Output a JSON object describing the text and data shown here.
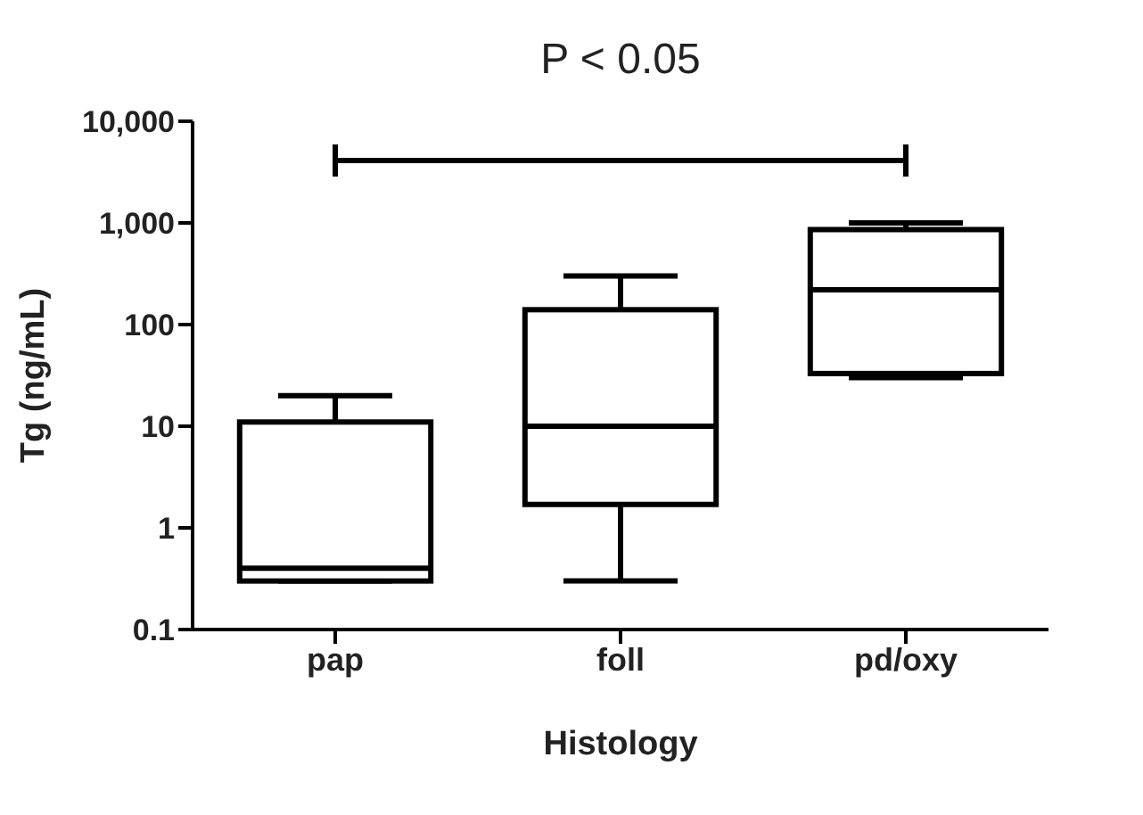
{
  "chart_data": {
    "type": "box",
    "categories": [
      "pap",
      "foll",
      "pd/oxy"
    ],
    "xlabel": "Histology",
    "ylabel": "Tg (ng/mL)",
    "boxes": [
      {
        "low": 0.3,
        "q1": 0.3,
        "median": 0.4,
        "q3": 11,
        "high": 20
      },
      {
        "low": 0.3,
        "q1": 1.7,
        "median": 10,
        "q3": 140,
        "high": 300
      },
      {
        "low": 30,
        "q1": 33,
        "median": 220,
        "q3": 860,
        "high": 1000
      }
    ],
    "color": "#000000",
    "log": "y",
    "ylim": [
      0.1,
      10000
    ],
    "yticks": [
      0.1,
      1,
      10,
      100,
      {
        "value": 1000,
        "label": "1,000"
      },
      {
        "value": 10000,
        "label": "10,000"
      }
    ],
    "annotations": [
      "P < 0.05"
    ]
  }
}
